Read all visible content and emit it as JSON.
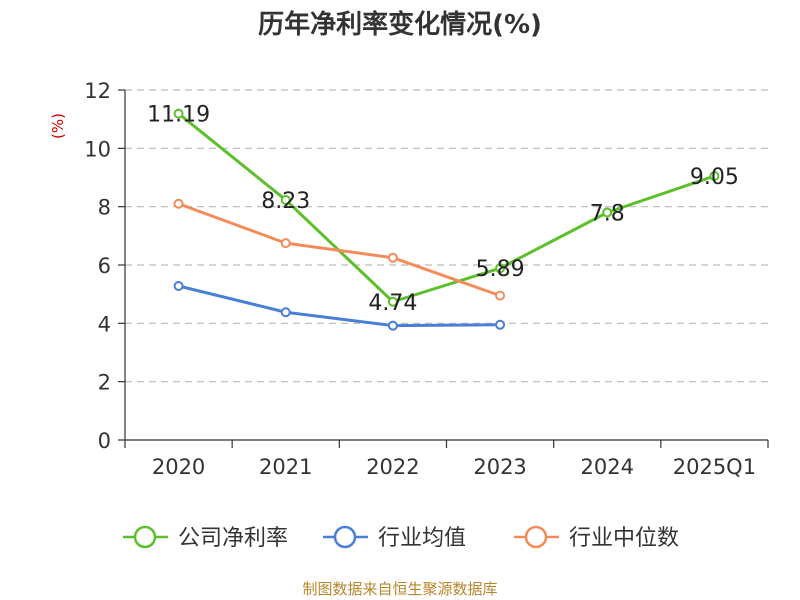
{
  "chart_data": {
    "type": "line",
    "title": "历年净利率变化情况(%)",
    "ylabel": "(%)",
    "xlabel": "",
    "ylim": [
      0,
      12
    ],
    "yticks": [
      0,
      2,
      4,
      6,
      8,
      10,
      12
    ],
    "categories": [
      "2020",
      "2021",
      "2022",
      "2023",
      "2024",
      "2025Q1"
    ],
    "grid": true,
    "legend_position": "bottom",
    "series": [
      {
        "name": "公司净利率",
        "color": "#5cc02a",
        "values": [
          11.19,
          8.23,
          4.74,
          5.89,
          7.8,
          9.05
        ],
        "labels": [
          "11.19",
          "8.23",
          "4.74",
          "5.89",
          "7.8",
          "9.05"
        ]
      },
      {
        "name": "行业均值",
        "color": "#4a7fd6",
        "values": [
          5.28,
          4.38,
          3.92,
          3.95,
          null,
          null
        ]
      },
      {
        "name": "行业中位数",
        "color": "#f28c5b",
        "values": [
          8.1,
          6.75,
          6.25,
          4.95,
          null,
          null
        ]
      }
    ]
  },
  "source": "制图数据来自恒生聚源数据库"
}
